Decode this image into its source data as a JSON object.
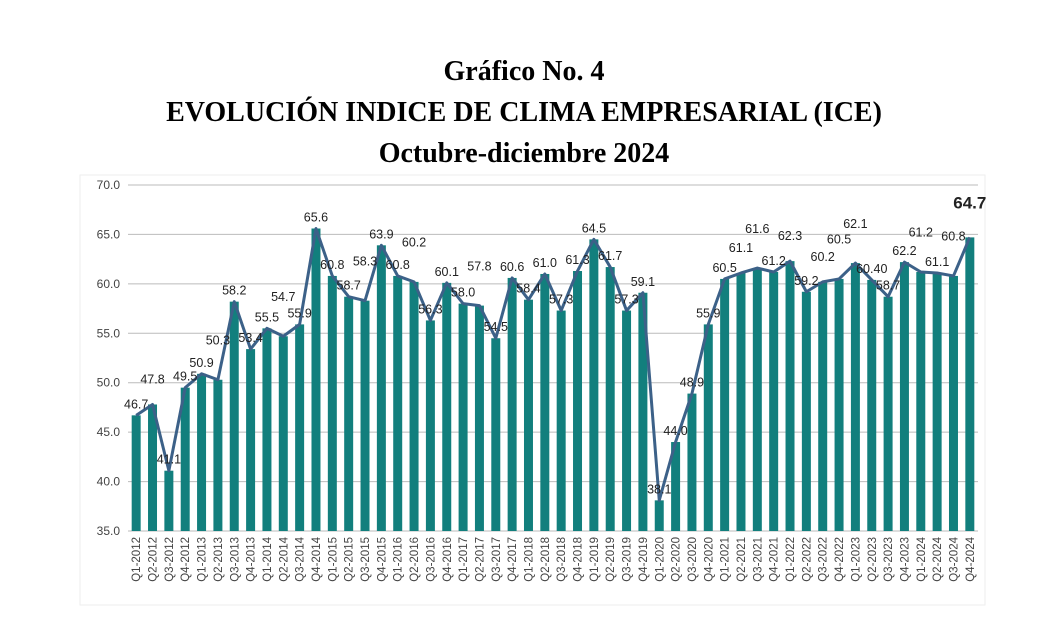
{
  "chart_data": {
    "type": "bar",
    "title": "Gráfico No. 4",
    "subtitle": "EVOLUCIÓN INDICE DE CLIMA EMPRESARIAL (ICE)",
    "subtitle2": "Octubre-diciembre 2024",
    "xlabel": "",
    "ylabel": "",
    "ylim": [
      35.0,
      70.0
    ],
    "yticks": [
      "35.0",
      "40.0",
      "45.0",
      "50.0",
      "55.0",
      "60.0",
      "65.0",
      "70.0"
    ],
    "grid": true,
    "colors": {
      "bar": "#127f7d",
      "line": "#3c6188"
    },
    "categories": [
      "Q1-2012",
      "Q2-2012",
      "Q3-2012",
      "Q4-2012",
      "Q1-2013",
      "Q2-2013",
      "Q3-2013",
      "Q4-2013",
      "Q1-2014",
      "Q2-2014",
      "Q3-2014",
      "Q4-2014",
      "Q1-2015",
      "Q2-2015",
      "Q3-2015",
      "Q4-2015",
      "Q1-2016",
      "Q2-2016",
      "Q3-2016",
      "Q4-2016",
      "Q1-2017",
      "Q2-2017",
      "Q3-2017",
      "Q4-2017",
      "Q1-2018",
      "Q2-2018",
      "Q3-2018",
      "Q4-2018",
      "Q1-2019",
      "Q2-2019",
      "Q3-2019",
      "Q4-2019",
      "Q1-2020",
      "Q2-2020",
      "Q3-2020",
      "Q4-2020",
      "Q1-2021",
      "Q2-2021",
      "Q3-2021",
      "Q4-2021",
      "Q1-2022",
      "Q2-2022",
      "Q3-2022",
      "Q4-2022",
      "Q1-2023",
      "Q2-2023",
      "Q3-2023",
      "Q4-2023",
      "Q1-2024",
      "Q2-2024",
      "Q3-2024",
      "Q4-2024"
    ],
    "values": [
      46.7,
      47.8,
      41.1,
      49.5,
      50.9,
      50.3,
      58.2,
      53.4,
      55.5,
      54.7,
      55.9,
      65.6,
      60.8,
      58.7,
      58.3,
      63.9,
      60.8,
      60.2,
      56.3,
      60.1,
      58.0,
      57.8,
      54.5,
      60.6,
      58.4,
      61.0,
      57.3,
      61.3,
      64.5,
      61.7,
      57.3,
      59.1,
      38.1,
      44.0,
      48.9,
      55.9,
      60.5,
      61.1,
      61.6,
      61.2,
      62.3,
      59.2,
      60.2,
      60.5,
      62.1,
      60.4,
      58.7,
      62.2,
      61.2,
      61.1,
      60.8,
      64.7
    ],
    "labels": [
      "46.7",
      "47.8",
      "41.1",
      "49.5",
      "50.9",
      "50.3",
      "58.2",
      "53.4",
      "55.5",
      "54.7",
      "55.9",
      "65.6",
      "60.8",
      "58.7",
      "58.3",
      "63.9",
      "60.8",
      "60.2",
      "56.3",
      "60.1",
      "58.0",
      "57.8",
      "54.5",
      "60.6",
      "58.4",
      "61.0",
      "57.3",
      "61.3",
      "64.5",
      "61.7",
      "57.3",
      "59.1",
      "38.1",
      "44.0",
      "48.9",
      "55.9",
      "60.5",
      "61.1",
      "61.6",
      "61.2",
      "62.3",
      "59.2",
      "60.2",
      "60.5",
      "62.1",
      "60.40",
      "58.7",
      "62.2",
      "61.2",
      "61.1",
      "60.8",
      "64.7"
    ]
  }
}
